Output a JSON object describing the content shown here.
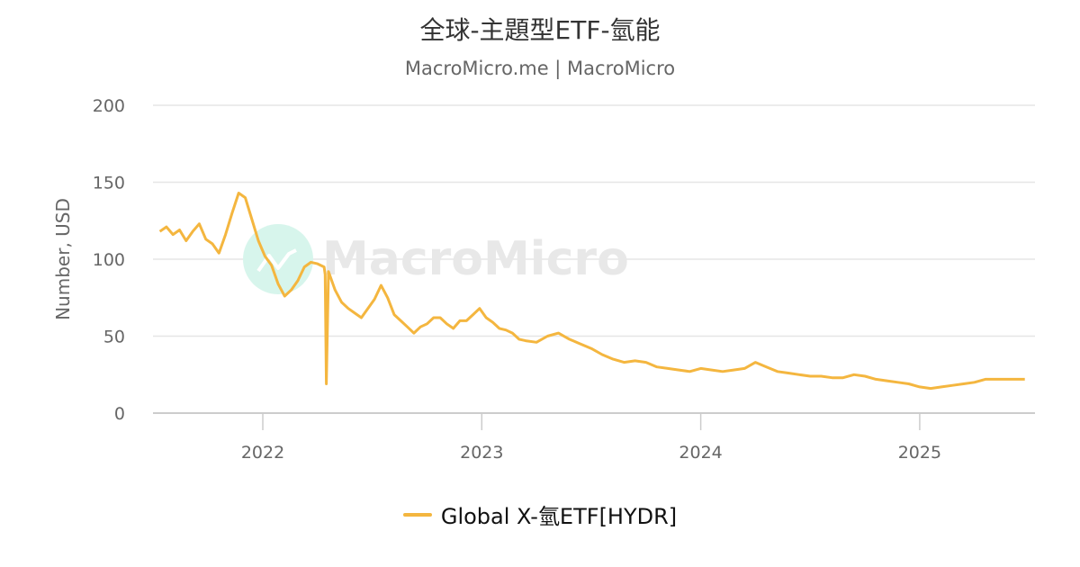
{
  "header": {
    "title": "全球-主題型ETF-氫能",
    "subtitle": "MacroMicro.me | MacroMicro"
  },
  "watermark": {
    "text": "MacroMicro"
  },
  "legend": {
    "items": [
      {
        "label": "Global X-氫ETF[HYDR]",
        "color": "#f4b63f"
      }
    ]
  },
  "colors": {
    "series": "#f4b63f",
    "grid": "#e6e6e6",
    "axis_text": "#666666",
    "watermark_circle": "#d7f5ec"
  },
  "chart_data": {
    "type": "line",
    "title": "全球-主題型ETF-氫能",
    "subtitle": "MacroMicro.me | MacroMicro",
    "xlabel": "",
    "ylabel": "Number, USD",
    "ylim": [
      0,
      200
    ],
    "yticks": [
      0,
      50,
      100,
      150,
      200
    ],
    "xticks": [
      "2022",
      "2023",
      "2024",
      "2025"
    ],
    "grid": true,
    "legend_position": "bottom",
    "series": [
      {
        "name": "Global X-氫ETF[HYDR]",
        "color": "#f4b63f",
        "x": [
          2021.53,
          2021.56,
          2021.59,
          2021.62,
          2021.65,
          2021.68,
          2021.71,
          2021.74,
          2021.77,
          2021.8,
          2021.83,
          2021.86,
          2021.89,
          2021.92,
          2021.95,
          2021.98,
          2022.01,
          2022.04,
          2022.07,
          2022.1,
          2022.13,
          2022.16,
          2022.19,
          2022.22,
          2022.25,
          2022.28,
          2022.285,
          2022.29,
          2022.3,
          2022.33,
          2022.36,
          2022.39,
          2022.42,
          2022.45,
          2022.48,
          2022.51,
          2022.54,
          2022.57,
          2022.6,
          2022.63,
          2022.66,
          2022.69,
          2022.72,
          2022.75,
          2022.78,
          2022.81,
          2022.84,
          2022.87,
          2022.9,
          2022.93,
          2022.96,
          2022.99,
          2023.02,
          2023.05,
          2023.08,
          2023.11,
          2023.14,
          2023.17,
          2023.2,
          2023.25,
          2023.3,
          2023.35,
          2023.4,
          2023.45,
          2023.5,
          2023.55,
          2023.6,
          2023.65,
          2023.7,
          2023.75,
          2023.8,
          2023.85,
          2023.9,
          2023.95,
          2024.0,
          2024.05,
          2024.1,
          2024.15,
          2024.2,
          2024.25,
          2024.3,
          2024.35,
          2024.4,
          2024.45,
          2024.5,
          2024.55,
          2024.6,
          2024.65,
          2024.7,
          2024.75,
          2024.8,
          2024.85,
          2024.9,
          2024.95,
          2025.0,
          2025.05,
          2025.1,
          2025.15,
          2025.2,
          2025.25,
          2025.3,
          2025.35,
          2025.4,
          2025.45,
          2025.48
        ],
        "values": [
          118,
          121,
          116,
          119,
          112,
          118,
          123,
          113,
          110,
          104,
          116,
          130,
          143,
          140,
          126,
          112,
          102,
          96,
          84,
          76,
          80,
          86,
          95,
          98,
          97,
          95,
          90,
          19,
          92,
          80,
          72,
          68,
          65,
          62,
          68,
          74,
          83,
          75,
          64,
          60,
          56,
          52,
          56,
          58,
          62,
          62,
          58,
          55,
          60,
          60,
          64,
          68,
          62,
          59,
          55,
          54,
          52,
          48,
          47,
          46,
          50,
          52,
          48,
          45,
          42,
          38,
          35,
          33,
          34,
          33,
          30,
          29,
          28,
          27,
          29,
          28,
          27,
          28,
          29,
          33,
          30,
          27,
          26,
          25,
          24,
          24,
          23,
          23,
          25,
          24,
          22,
          21,
          20,
          19,
          17,
          16,
          17,
          18,
          19,
          20,
          22,
          22,
          22,
          22,
          22
        ]
      }
    ]
  }
}
